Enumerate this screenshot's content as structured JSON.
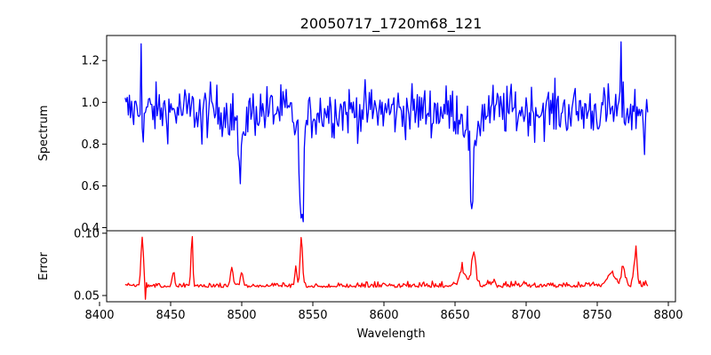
{
  "chart_data": {
    "type": "line",
    "title": "20050717_1720m68_121",
    "xlabel": "Wavelength",
    "xlim": [
      8405,
      8805
    ],
    "x_ticks": [
      "8400",
      "8450",
      "8500",
      "8550",
      "8600",
      "8650",
      "8700",
      "8750",
      "8800"
    ],
    "grid": false,
    "panels": [
      {
        "name": "spectrum",
        "ylabel": "Spectrum",
        "ylim": [
          0.385,
          1.32
        ],
        "y_ticks": [
          "0.4",
          "0.6",
          "0.8",
          "1.0",
          "1.2"
        ],
        "color": "#0000ff",
        "x_range": [
          8418,
          8786
        ],
        "baseline": 0.96,
        "noise": 0.06,
        "features": [
          {
            "x": 8499,
            "depth": 0.32,
            "width": 1.4
          },
          {
            "x": 8542,
            "depth": 0.53,
            "width": 1.6
          },
          {
            "x": 8662,
            "depth": 0.46,
            "width": 1.6
          }
        ],
        "spikes": [
          {
            "x": 8429.5,
            "y": 1.28
          },
          {
            "x": 8766.5,
            "y": 1.29
          },
          {
            "x": 8431,
            "y": 0.81
          },
          {
            "x": 8472,
            "y": 0.8
          },
          {
            "x": 8783,
            "y": 0.75
          }
        ]
      },
      {
        "name": "error",
        "ylabel": "Error",
        "ylim": [
          0.045,
          0.102
        ],
        "y_ticks": [
          "0.05",
          "0.10"
        ],
        "color": "#ff0000",
        "x_range": [
          8418,
          8786
        ],
        "baseline": 0.0575,
        "noise": 0.002,
        "features": [
          {
            "x": 8430,
            "height": 0.039,
            "width": 1.2
          },
          {
            "x": 8465,
            "height": 0.043,
            "width": 0.9
          },
          {
            "x": 8542,
            "height": 0.041,
            "width": 1.2
          },
          {
            "x": 8663,
            "height": 0.027,
            "width": 2.0
          },
          {
            "x": 8777,
            "height": 0.03,
            "width": 1.5
          },
          {
            "x": 8768,
            "height": 0.019,
            "width": 1.5
          },
          {
            "x": 8452,
            "height": 0.012,
            "width": 1.0
          },
          {
            "x": 8493,
            "height": 0.016,
            "width": 1.2
          },
          {
            "x": 8500,
            "height": 0.01,
            "width": 1.5
          },
          {
            "x": 8538,
            "height": 0.018,
            "width": 1.0
          },
          {
            "x": 8655,
            "height": 0.012,
            "width": 3.0
          },
          {
            "x": 8760,
            "height": 0.012,
            "width": 4.0
          }
        ],
        "dips": [
          {
            "x": 8432,
            "y": 0.047
          }
        ]
      }
    ]
  }
}
